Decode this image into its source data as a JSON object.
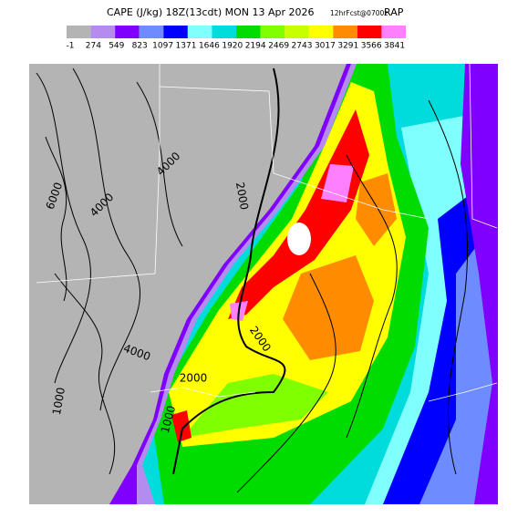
{
  "header": {
    "title": "CAPE (J/kg) 18Z(13cdt) MON 13 Apr 2026",
    "forecast": "12hrFcst@0700z",
    "model": "RAP"
  },
  "colorbar": {
    "colors": [
      "#b4b4b4",
      "#b48cf0",
      "#7f00ff",
      "#6e8cff",
      "#0000ff",
      "#80ffff",
      "#00dcdc",
      "#00dc00",
      "#80ff00",
      "#c8ff00",
      "#ffff00",
      "#ff8c00",
      "#ff0000",
      "#ff80ff"
    ],
    "labels": [
      "-1",
      "274",
      "549",
      "823",
      "1097",
      "1371",
      "1646",
      "1920",
      "2194",
      "2469",
      "2743",
      "3017",
      "3291",
      "3566",
      "3841"
    ]
  },
  "map": {
    "contour_labels": [
      "6000",
      "4000",
      "4000",
      "2000",
      "2000",
      "2000",
      "4000",
      "1000",
      "1000"
    ]
  }
}
